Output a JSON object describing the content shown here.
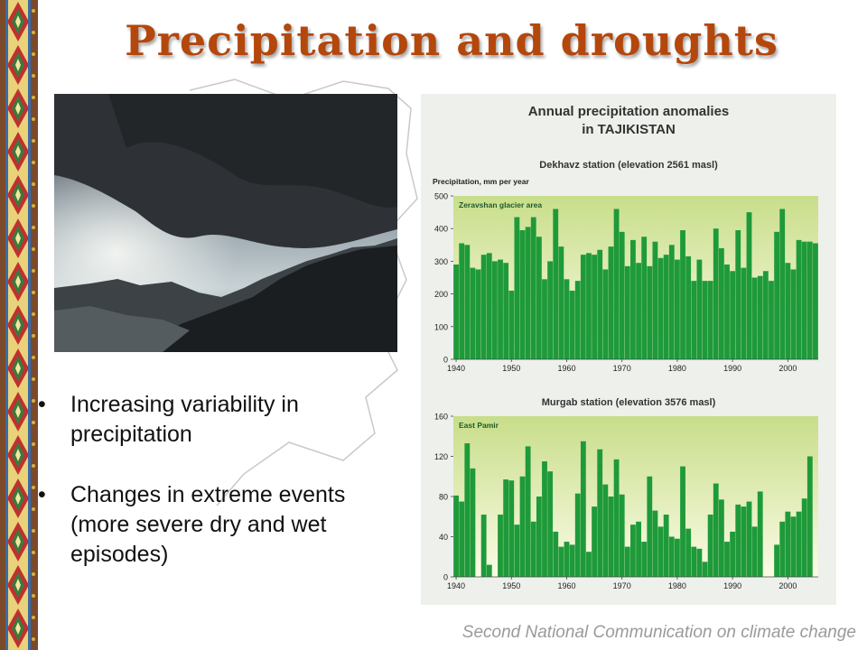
{
  "slide": {
    "title": "Precipitation and droughts",
    "bullets": [
      "Increasing variability in precipitation",
      "Changes in extreme events (more severe dry and wet episodes)"
    ],
    "footer": "Second National Communication on climate change",
    "title_color": "#b4470c"
  },
  "chart_data": [
    {
      "type": "bar",
      "title": "Annual precipitation anomalies in TAJIKISTAN",
      "subtitle": "Dekhavz station (elevation 2561 masl)",
      "ylabel": "Precipitation, mm per year",
      "annotation": "Zeravshan glacier area",
      "ylim": [
        0,
        500
      ],
      "yticks": [
        0,
        100,
        200,
        300,
        400,
        500
      ],
      "xticks": [
        1940,
        1950,
        1960,
        1970,
        1980,
        1990,
        2000
      ],
      "bar_color": "#1e9a3a",
      "series": [
        {
          "x": [
            1940,
            1941,
            1942,
            1943,
            1944,
            1945,
            1946,
            1947,
            1948,
            1949,
            1950,
            1951,
            1952,
            1953,
            1954,
            1955,
            1956,
            1957,
            1958,
            1959,
            1960,
            1961,
            1962,
            1963,
            1964,
            1965,
            1966,
            1967,
            1968,
            1969,
            1970,
            1971,
            1972,
            1973,
            1974,
            1975,
            1976,
            1977,
            1978,
            1979,
            1980,
            1981,
            1982,
            1983,
            1984,
            1985,
            1986,
            1987,
            1988,
            1989,
            1990,
            1991,
            1992,
            1993,
            1994,
            1995,
            1996,
            1997,
            1998,
            1999,
            2000,
            2001,
            2002,
            2003,
            2004,
            2005
          ],
          "values": [
            290,
            355,
            350,
            280,
            275,
            320,
            325,
            300,
            305,
            295,
            210,
            435,
            395,
            405,
            435,
            375,
            245,
            300,
            460,
            345,
            245,
            210,
            240,
            320,
            325,
            320,
            335,
            275,
            345,
            460,
            390,
            285,
            365,
            295,
            375,
            285,
            360,
            310,
            320,
            350,
            305,
            395,
            315,
            240,
            305,
            240,
            240,
            400,
            340,
            290,
            270,
            395,
            280,
            450,
            250,
            255,
            270,
            240,
            390,
            460,
            295,
            275,
            365,
            360,
            360,
            355
          ]
        }
      ]
    },
    {
      "type": "bar",
      "subtitle": "Murgab station (elevation 3576 masl)",
      "annotation": "East Pamir",
      "ylim": [
        0,
        160
      ],
      "yticks": [
        0,
        40,
        80,
        120,
        160
      ],
      "xticks": [
        1940,
        1950,
        1960,
        1970,
        1980,
        1990,
        2000
      ],
      "bar_color": "#1e9a3a",
      "series": [
        {
          "x": [
            1940,
            1941,
            1942,
            1943,
            1944,
            1945,
            1946,
            1947,
            1948,
            1949,
            1950,
            1951,
            1952,
            1953,
            1954,
            1955,
            1956,
            1957,
            1958,
            1959,
            1960,
            1961,
            1962,
            1963,
            1964,
            1965,
            1966,
            1967,
            1968,
            1969,
            1970,
            1971,
            1972,
            1973,
            1974,
            1975,
            1976,
            1977,
            1978,
            1979,
            1980,
            1981,
            1982,
            1983,
            1984,
            1985,
            1986,
            1987,
            1988,
            1989,
            1990,
            1991,
            1992,
            1993,
            1994,
            1995,
            1996,
            1997,
            1998,
            1999,
            2000,
            2001,
            2002,
            2003,
            2004,
            2005
          ],
          "values": [
            81,
            75,
            133,
            108,
            0,
            62,
            12,
            0,
            62,
            97,
            96,
            52,
            100,
            130,
            55,
            80,
            115,
            105,
            45,
            30,
            35,
            32,
            83,
            135,
            25,
            70,
            127,
            92,
            80,
            117,
            82,
            30,
            52,
            55,
            35,
            100,
            66,
            50,
            62,
            40,
            38,
            110,
            48,
            30,
            28,
            15,
            62,
            93,
            77,
            35,
            45,
            72,
            70,
            75,
            50,
            85,
            0,
            0,
            32,
            55,
            65,
            60,
            65,
            78,
            120,
            0
          ]
        }
      ]
    }
  ]
}
